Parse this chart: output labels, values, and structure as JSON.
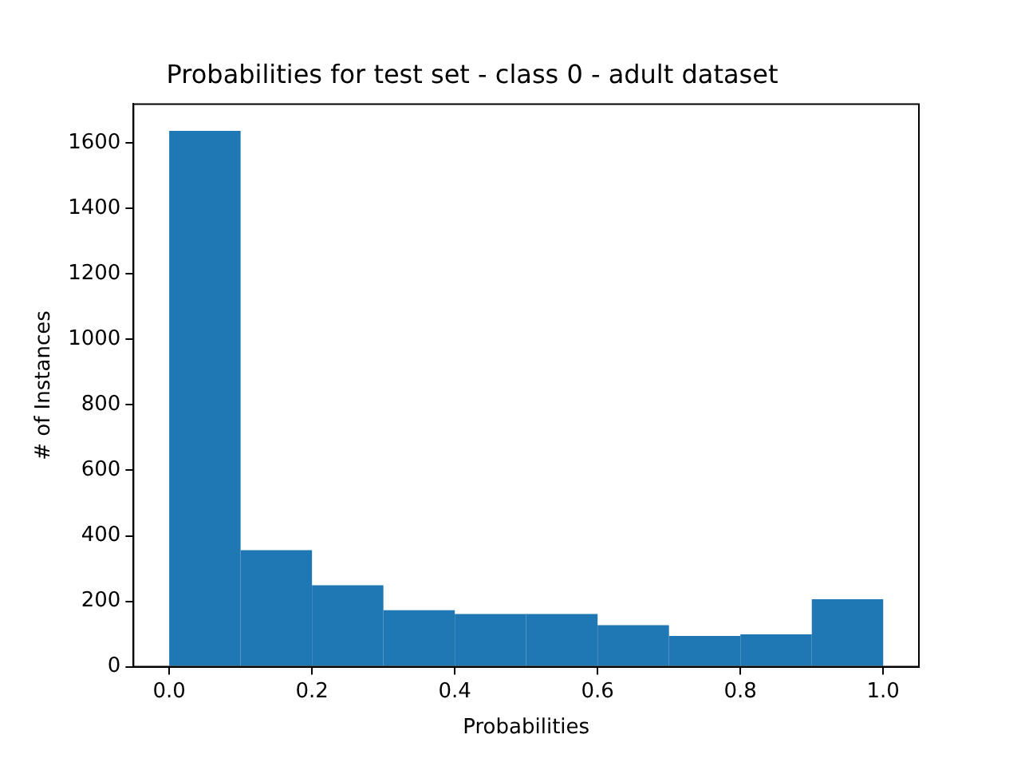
{
  "chart_data": {
    "type": "histogram",
    "title": "Probabilities for test set - class 0 - adult dataset",
    "xlabel": "Probabilities",
    "ylabel": "# of Instances",
    "bins": [
      0,
      0.1,
      0.2,
      0.3,
      0.4,
      0.5,
      0.6,
      0.7,
      0.8,
      0.9,
      1.0
    ],
    "values": [
      1637,
      356,
      249,
      173,
      161,
      161,
      127,
      94,
      99,
      206
    ],
    "color": "#1f77b4",
    "xlim": [
      -0.05,
      1.05
    ],
    "ylim": [
      0,
      1719
    ],
    "xticks": [
      {
        "value": 0,
        "label": "0.0"
      },
      {
        "value": 0.2,
        "label": "0.2"
      },
      {
        "value": 0.4,
        "label": "0.4"
      },
      {
        "value": 0.6,
        "label": "0.6"
      },
      {
        "value": 0.8,
        "label": "0.8"
      },
      {
        "value": 1,
        "label": "1.0"
      }
    ],
    "yticks": [
      0,
      200,
      400,
      600,
      800,
      1000,
      1200,
      1400,
      1600
    ]
  }
}
